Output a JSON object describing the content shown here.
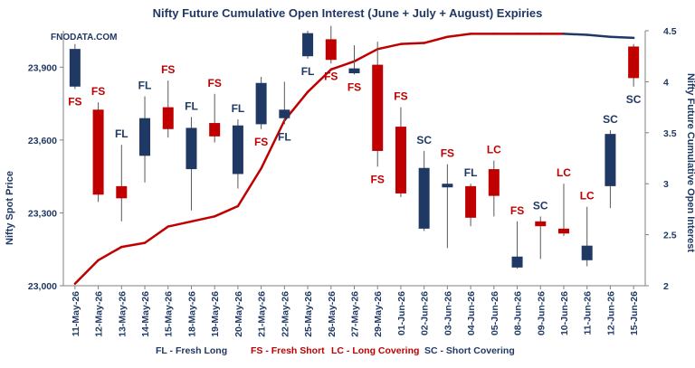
{
  "chart_data": {
    "type": "candlestick+line",
    "title": "Nifty Future Cumulative Open Interest (June + July + August) Expiries",
    "watermark": "FNODATA.COM",
    "ylabel_left": "Nifty Spot Price",
    "ylabel_right": "Nifty Future Cumulative Open Interest",
    "ylim_left": [
      23000,
      24050
    ],
    "ylim_right": [
      2,
      4.5
    ],
    "yticks_left": [
      "23,000",
      "23,300",
      "23,600",
      "23,900"
    ],
    "yticks_right": [
      "2",
      "2.5",
      "3",
      "3.5",
      "4",
      "4.5"
    ],
    "grid": false,
    "colors": {
      "fs": "#c00000",
      "fl": "#1f3864",
      "sc": "#1f3864",
      "lc": "#c00000",
      "oi_up": "#c00000",
      "oi_down": "#1f3864",
      "title": "#1f3864"
    },
    "categories": [
      "11-May-26",
      "12-May-26",
      "13-May-26",
      "14-May-26",
      "15-May-26",
      "18-May-26",
      "19-May-26",
      "20-May-26",
      "21-May-26",
      "22-May-26",
      "25-May-26",
      "26-May-26",
      "27-May-26",
      "29-May-26",
      "01-Jun-26",
      "02-Jun-26",
      "03-Jun-26",
      "04-Jun-26",
      "05-Jun-26",
      "08-Jun-26",
      "09-Jun-26",
      "10-Jun-26",
      "11-Jun-26",
      "12-Jun-26",
      "15-Jun-26"
    ],
    "candles": [
      {
        "open": 23820,
        "close": 23975,
        "high": 23995,
        "low": 23810,
        "label": "FS",
        "label_pos": "below"
      },
      {
        "open": 23725,
        "close": 23375,
        "high": 23755,
        "low": 23345,
        "label": "FS",
        "label_pos": "above"
      },
      {
        "open": 23410,
        "close": 23360,
        "high": 23580,
        "low": 23265,
        "label": "FL",
        "label_pos": "above"
      },
      {
        "open": 23535,
        "close": 23690,
        "high": 23780,
        "low": 23425,
        "label": "FL",
        "label_pos": "above"
      },
      {
        "open": 23735,
        "close": 23645,
        "high": 23845,
        "low": 23610,
        "label": "FS",
        "label_pos": "above"
      },
      {
        "open": 23480,
        "close": 23650,
        "high": 23695,
        "low": 23310,
        "label": "FL",
        "label_pos": "above"
      },
      {
        "open": 23670,
        "close": 23615,
        "high": 23790,
        "low": 23590,
        "label": "FS",
        "label_pos": "above"
      },
      {
        "open": 23460,
        "close": 23660,
        "high": 23685,
        "low": 23400,
        "label": "FL",
        "label_pos": "above"
      },
      {
        "open": 23665,
        "close": 23835,
        "high": 23860,
        "low": 23645,
        "label": "FS",
        "label_pos": "below"
      },
      {
        "open": 23690,
        "close": 23725,
        "high": 23840,
        "low": 23665,
        "label": "FL",
        "label_pos": "below"
      },
      {
        "open": 23945,
        "close": 24040,
        "high": 24050,
        "low": 23935,
        "label": "FL",
        "label_pos": "below"
      },
      {
        "open": 24015,
        "close": 23930,
        "high": 24070,
        "low": 23915,
        "label": "FS",
        "label_pos": "below"
      },
      {
        "open": 23875,
        "close": 23895,
        "high": 23990,
        "low": 23870,
        "label": "FS",
        "label_pos": "below"
      },
      {
        "open": 23910,
        "close": 23555,
        "high": 24005,
        "low": 23490,
        "label": "FS",
        "label_pos": "below"
      },
      {
        "open": 23655,
        "close": 23380,
        "high": 23735,
        "low": 23365,
        "label": "FS",
        "label_pos": "above"
      },
      {
        "open": 23235,
        "close": 23485,
        "high": 23555,
        "low": 23225,
        "label": "SC",
        "label_pos": "above"
      },
      {
        "open": 23405,
        "close": 23420,
        "high": 23500,
        "low": 23155,
        "label": "FS",
        "label_pos": "above"
      },
      {
        "open": 23410,
        "close": 23280,
        "high": 23420,
        "low": 23245,
        "label": "FL",
        "label_pos": "above"
      },
      {
        "open": 23480,
        "close": 23370,
        "high": 23515,
        "low": 23285,
        "label": "LC",
        "label_pos": "above"
      },
      {
        "open": 23075,
        "close": 23120,
        "high": 23265,
        "low": 23070,
        "label": "FS",
        "label_pos": "above"
      },
      {
        "open": 23265,
        "close": 23245,
        "high": 23285,
        "low": 23110,
        "label": "SC",
        "label_pos": "above"
      },
      {
        "open": 23235,
        "close": 23215,
        "high": 23420,
        "low": 23205,
        "label": "LC",
        "label_pos": "above"
      },
      {
        "open": 23105,
        "close": 23165,
        "high": 23325,
        "low": 23080,
        "label": "LC",
        "label_pos": "above"
      },
      {
        "open": 23410,
        "close": 23625,
        "high": 23640,
        "low": 23320,
        "label": "SC",
        "label_pos": "above"
      },
      {
        "open": 23985,
        "close": 23855,
        "high": 23995,
        "low": 23820,
        "label": "SC",
        "label_pos": "below"
      }
    ],
    "open_interest": [
      2.02,
      2.25,
      2.38,
      2.42,
      2.58,
      2.63,
      2.68,
      2.78,
      3.15,
      3.62,
      3.9,
      4.12,
      4.2,
      4.32,
      4.37,
      4.38,
      4.44,
      4.47,
      4.47,
      4.47,
      4.47,
      4.47,
      4.46,
      4.44,
      4.43
    ],
    "legend": {
      "fl": "FL - Fresh Long",
      "fs": "FS - Fresh Short",
      "lc": "LC - Long Covering",
      "sc": "SC - Short Covering"
    }
  }
}
